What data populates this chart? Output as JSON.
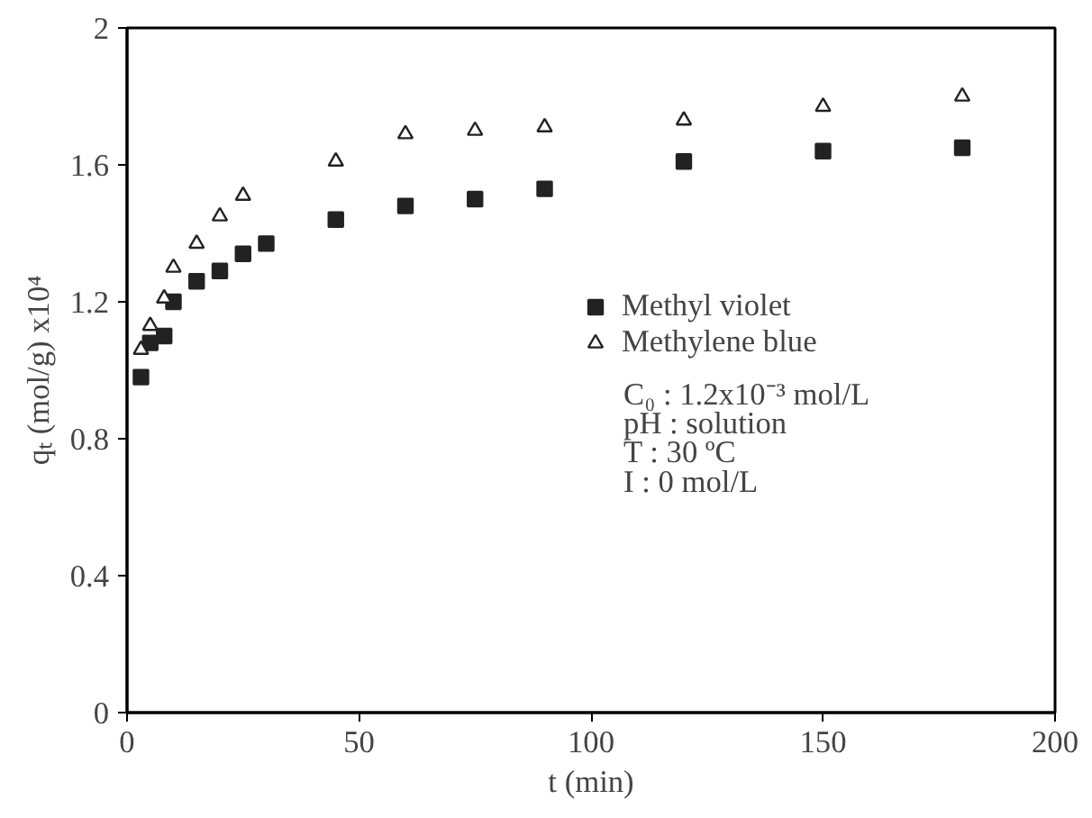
{
  "chart_data": {
    "type": "scatter",
    "xlabel": "t (min)",
    "ylabel": "qₜ (mol/g) x10⁴",
    "xlim": [
      0,
      200
    ],
    "xticks": [
      0,
      50,
      100,
      150,
      200
    ],
    "ylim": [
      0,
      2
    ],
    "yticks": [
      0,
      0.4,
      0.8,
      1.2,
      1.6,
      2
    ],
    "grid": false,
    "legend": "right",
    "series": [
      {
        "name": "Methyl violet",
        "color": "#222222",
        "marker": "square",
        "x": [
          3,
          5,
          8,
          10,
          15,
          20,
          25,
          30,
          45,
          60,
          75,
          90,
          120,
          150,
          180
        ],
        "values": [
          0.98,
          1.08,
          1.1,
          1.2,
          1.26,
          1.29,
          1.34,
          1.37,
          1.44,
          1.48,
          1.5,
          1.53,
          1.61,
          1.64,
          1.65
        ]
      },
      {
        "name": "Methylene blue",
        "color": "#222222",
        "marker": "triangle",
        "x": [
          3,
          5,
          8,
          10,
          15,
          20,
          25,
          45,
          60,
          75,
          90,
          120,
          150,
          180
        ],
        "values": [
          1.06,
          1.13,
          1.21,
          1.3,
          1.37,
          1.45,
          1.51,
          1.61,
          1.69,
          1.7,
          1.71,
          1.73,
          1.77,
          1.8
        ]
      }
    ],
    "annotations": [
      "C₀ : 1.2x10⁻³ mol/L",
      "pH : solution",
      "T : 30 ºC",
      "I : 0 mol/L"
    ]
  }
}
